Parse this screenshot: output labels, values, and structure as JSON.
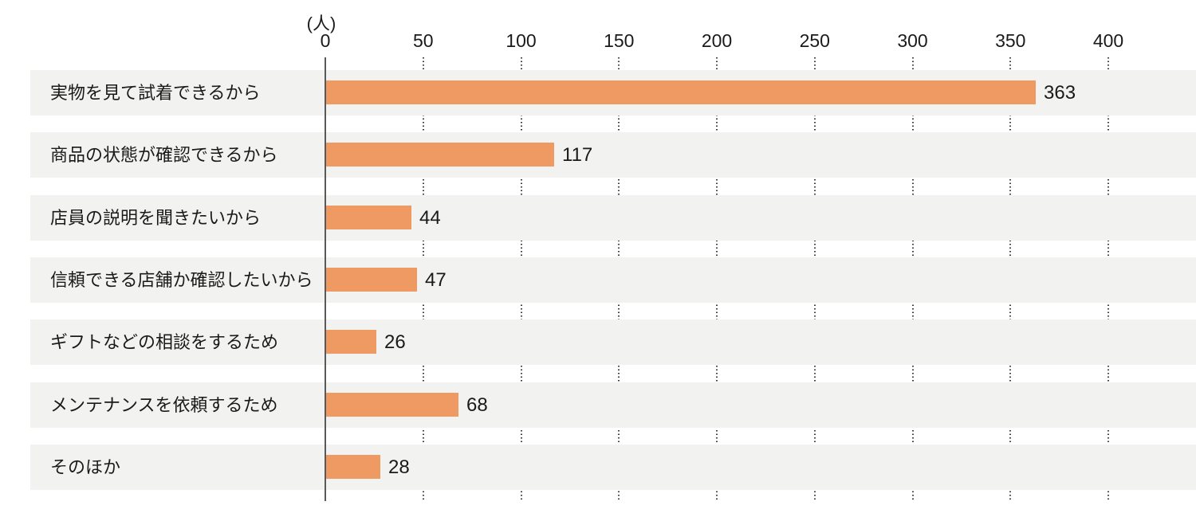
{
  "chart_data": {
    "type": "bar",
    "orientation": "horizontal",
    "title": "",
    "unit_label": "(人)",
    "categories": [
      "実物を見て試着できるから",
      "商品の状態が確認できるから",
      "店員の説明を聞きたいから",
      "信頼できる店舗か確認したいから",
      "ギフトなどの相談をするため",
      "メンテナンスを依頼するため",
      "そのほか"
    ],
    "values": [
      363,
      117,
      44,
      47,
      26,
      68,
      28
    ],
    "x_tick_labels": [
      "0",
      "50",
      "100",
      "150",
      "200",
      "250",
      "300",
      "350",
      "400"
    ],
    "x_tick_values": [
      0,
      50,
      100,
      150,
      200,
      250,
      300,
      350,
      400
    ],
    "xlim": [
      0,
      445
    ],
    "grid": "dotted vertical gridlines at each tick, visible only in white gaps between row bands",
    "legend": "none",
    "value_label_position": "right of bar end",
    "colors": {
      "bar": "#F09A63",
      "row_band": "#F2F2F1",
      "axis_line": "#595959",
      "gridline": "#3A3A3A",
      "text": "#1A1A1A",
      "background": "#FFFFFF"
    }
  }
}
